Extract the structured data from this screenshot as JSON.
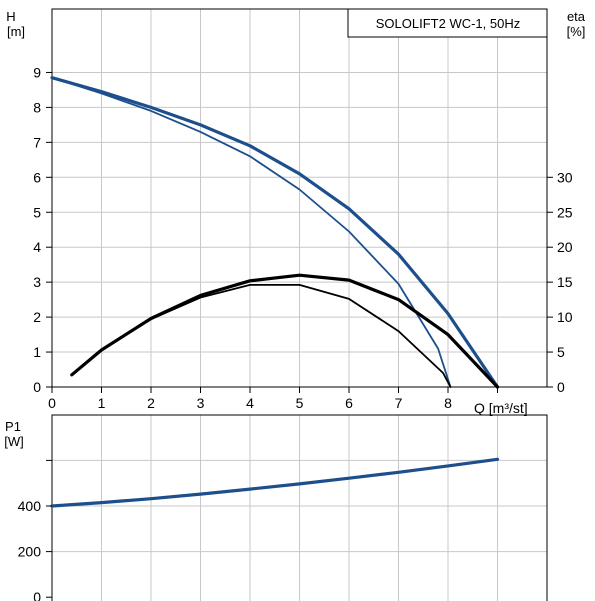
{
  "chart_data": [
    {
      "type": "line",
      "title": "SOLOLIFT2 WC-1, 50Hz",
      "x_label": "Q [m³/st]",
      "y_left_label": {
        "symbol": "H",
        "unit": "[m]"
      },
      "y_right_label": {
        "symbol": "eta",
        "unit": "[%]"
      },
      "x_ticks": [
        "0",
        "1",
        "2",
        "3",
        "4",
        "5",
        "6",
        "7",
        "8"
      ],
      "y_left_ticks": [
        "0",
        "1",
        "2",
        "3",
        "4",
        "5",
        "6",
        "7",
        "8",
        "9"
      ],
      "y_right_ticks": [
        "0",
        "5",
        "10",
        "15",
        "20",
        "25",
        "30"
      ],
      "xlim": [
        0,
        10
      ],
      "ylim_left": [
        0,
        10
      ],
      "ylim_right": [
        0,
        50
      ],
      "grid": true,
      "series": [
        {
          "axis": "left",
          "color": "#1d4f8c",
          "weight": "thick",
          "x": [
            0,
            1,
            2,
            3,
            4,
            5,
            6,
            7,
            8,
            9
          ],
          "y": [
            8.85,
            8.45,
            8.0,
            7.5,
            6.9,
            6.1,
            5.1,
            3.8,
            2.1,
            0
          ]
        },
        {
          "axis": "left",
          "color": "#1d4f8c",
          "weight": "thin",
          "x": [
            0,
            1,
            2,
            3,
            4,
            5,
            6,
            7,
            7.8,
            8.05
          ],
          "y": [
            8.85,
            8.4,
            7.9,
            7.3,
            6.6,
            5.65,
            4.45,
            2.95,
            1.1,
            0
          ]
        },
        {
          "axis": "right",
          "color": "#000000",
          "weight": "thick",
          "x": [
            0.4,
            1,
            2,
            3,
            4,
            5,
            6,
            7,
            8,
            9
          ],
          "y": [
            1.75,
            5.3,
            9.8,
            13.1,
            15.2,
            16.0,
            15.3,
            12.5,
            7.5,
            0
          ]
        },
        {
          "axis": "right",
          "color": "#000000",
          "weight": "thin",
          "x": [
            0.4,
            1,
            2,
            3,
            4,
            5,
            6,
            7,
            7.9,
            8.05
          ],
          "y": [
            1.75,
            5.3,
            9.7,
            12.8,
            14.6,
            14.6,
            12.6,
            8.0,
            2.0,
            0
          ]
        }
      ]
    },
    {
      "type": "line",
      "title": "",
      "x_label": "",
      "y_left_label": {
        "symbol": "P1",
        "unit": "[W]"
      },
      "y_ticks": [
        "0",
        "200",
        "400"
      ],
      "xlim": [
        0,
        10
      ],
      "ylim": [
        0,
        800
      ],
      "grid": true,
      "series": [
        {
          "axis": "left",
          "color": "#1d4f8c",
          "weight": "thick",
          "x": [
            0,
            1,
            2,
            3,
            4,
            5,
            6,
            7,
            8,
            9
          ],
          "y": [
            400,
            415,
            432,
            452,
            474,
            497,
            522,
            548,
            576,
            605
          ]
        }
      ]
    }
  ]
}
